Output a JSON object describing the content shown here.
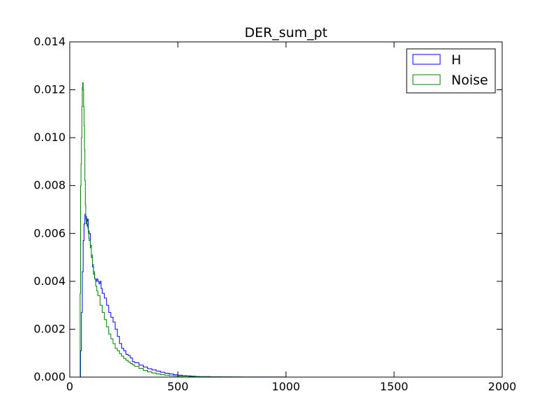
{
  "chart_data": {
    "type": "line",
    "title": "DER_sum_pt",
    "xlabel": "",
    "ylabel": "",
    "xlim": [
      0,
      2000
    ],
    "ylim": [
      0,
      0.014
    ],
    "xticks": [
      0,
      500,
      1000,
      1500,
      2000
    ],
    "yticks": [
      0.0,
      0.002,
      0.004,
      0.006,
      0.008,
      0.01,
      0.012,
      0.014
    ],
    "xtick_labels": [
      "0",
      "500",
      "1000",
      "1500",
      "2000"
    ],
    "ytick_labels": [
      "0.000",
      "0.002",
      "0.004",
      "0.006",
      "0.008",
      "0.010",
      "0.012",
      "0.014"
    ],
    "grid": false,
    "legend_position": "top-right",
    "histtype": "step",
    "series": [
      {
        "name": "H",
        "color": "#0000ff",
        "x": [
          46,
          50,
          54,
          58,
          62,
          66,
          70,
          74,
          78,
          82,
          86,
          90,
          95,
          100,
          105,
          110,
          115,
          120,
          125,
          130,
          135,
          140,
          145,
          150,
          160,
          170,
          180,
          190,
          200,
          210,
          220,
          230,
          240,
          250,
          260,
          270,
          280,
          290,
          300,
          320,
          340,
          360,
          380,
          400,
          420,
          440,
          460,
          480,
          500,
          520,
          540,
          560,
          580,
          600,
          650,
          700,
          750,
          800,
          900,
          1000,
          1200,
          1400,
          1600,
          1856
        ],
        "y": [
          0.0,
          0.0011,
          0.0027,
          0.0044,
          0.0057,
          0.0064,
          0.0068,
          0.0067,
          0.0065,
          0.0066,
          0.0061,
          0.006,
          0.0055,
          0.005,
          0.0046,
          0.0043,
          0.0041,
          0.004,
          0.0041,
          0.004,
          0.0039,
          0.004,
          0.0037,
          0.0035,
          0.0033,
          0.003,
          0.0027,
          0.0025,
          0.0023,
          0.002,
          0.0017,
          0.0014,
          0.0012,
          0.0011,
          0.00095,
          0.0009,
          0.0008,
          0.00065,
          0.0006,
          0.0005,
          0.00042,
          0.00035,
          0.0003,
          0.00025,
          0.0002,
          0.00016,
          0.00013,
          0.0001,
          8e-05,
          6e-05,
          5e-05,
          4e-05,
          3e-05,
          2e-05,
          1e-05,
          8e-06,
          5e-06,
          3e-06,
          2e-06,
          1e-06,
          5e-07,
          3e-07,
          1e-07,
          0.0
        ]
      },
      {
        "name": "Noise",
        "color": "#008000",
        "x": [
          46,
          48,
          50,
          52,
          54,
          56,
          58,
          60,
          62,
          64,
          66,
          68,
          70,
          72,
          74,
          76,
          78,
          80,
          82,
          84,
          86,
          88,
          90,
          95,
          100,
          105,
          110,
          115,
          120,
          125,
          130,
          140,
          150,
          160,
          170,
          180,
          190,
          200,
          210,
          220,
          230,
          240,
          250,
          260,
          270,
          280,
          290,
          300,
          320,
          340,
          360,
          380,
          400,
          420,
          440,
          460,
          480,
          500,
          550,
          600,
          650,
          700,
          800,
          900,
          1000,
          1200,
          1400,
          1600,
          1856
        ],
        "y": [
          0.0,
          0.0035,
          0.008,
          0.0089,
          0.01,
          0.0113,
          0.0121,
          0.0123,
          0.012,
          0.0113,
          0.0105,
          0.0095,
          0.0082,
          0.0072,
          0.0066,
          0.0064,
          0.0065,
          0.0063,
          0.0064,
          0.0062,
          0.006,
          0.0058,
          0.0057,
          0.0054,
          0.0051,
          0.0047,
          0.0044,
          0.0041,
          0.0038,
          0.0036,
          0.0034,
          0.003,
          0.0027,
          0.0024,
          0.0021,
          0.0018,
          0.0016,
          0.0014,
          0.0012,
          0.0011,
          0.00098,
          0.00087,
          0.00078,
          0.0007,
          0.00063,
          0.00057,
          0.00051,
          0.00045,
          0.00036,
          0.00028,
          0.00022,
          0.00017,
          0.00013,
          0.0001,
          8e-05,
          6e-05,
          5e-05,
          4e-05,
          2.5e-05,
          1.5e-05,
          1e-05,
          7e-06,
          4e-06,
          2e-06,
          1e-06,
          5e-07,
          2e-07,
          1e-07,
          0.0
        ]
      }
    ]
  }
}
